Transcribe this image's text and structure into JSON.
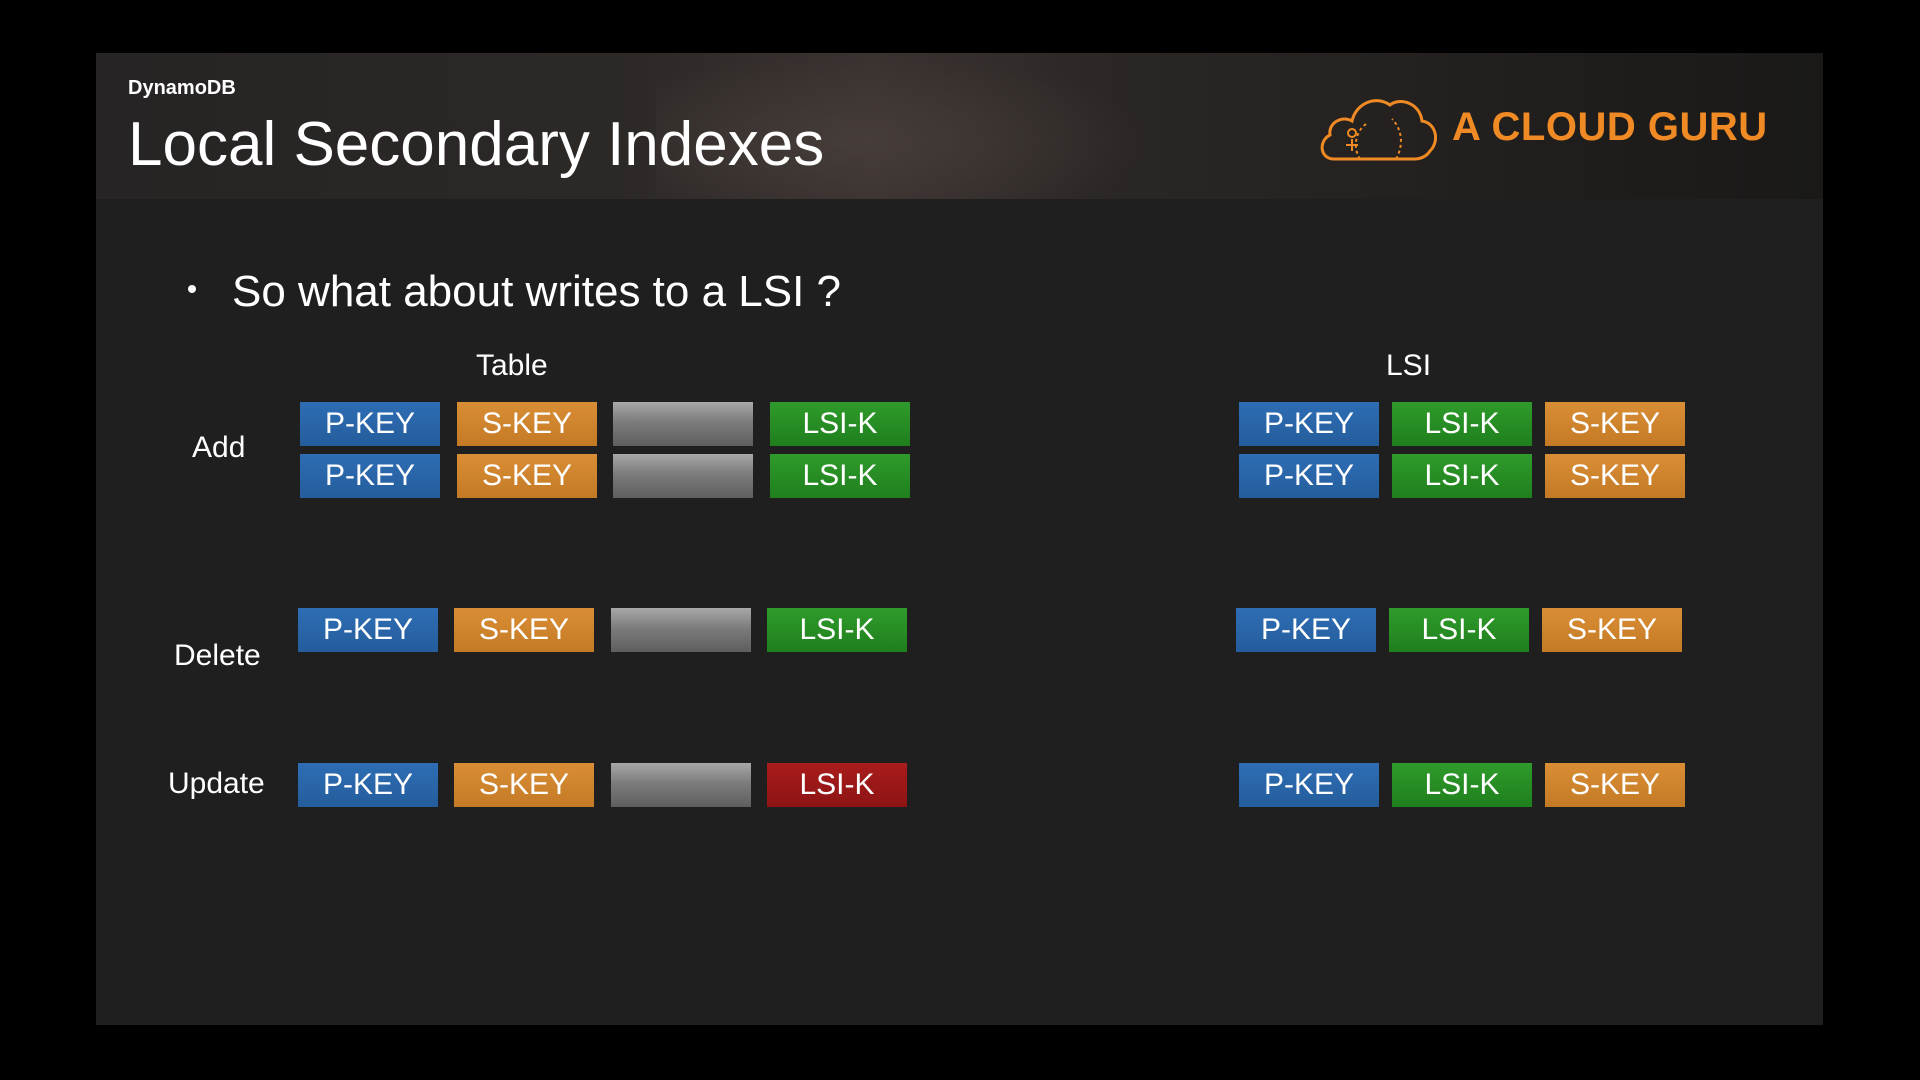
{
  "header": {
    "subtitle": "DynamoDB",
    "title": "Local Secondary Indexes",
    "logo_text": "A CLOUD GURU",
    "logo_icon": "cloud-icon"
  },
  "bullet": {
    "text": "So what about writes to a LSI ?"
  },
  "columns": {
    "table": "Table",
    "lsi": "LSI"
  },
  "rows": {
    "add": "Add",
    "delete": "Delete",
    "update": "Update"
  },
  "cells": {
    "pkey": "P-KEY",
    "skey": "S-KEY",
    "lsik": "LSI-K"
  },
  "colors": {
    "pkey": "#2a66aa",
    "skey": "#d08530",
    "lsik": "#278d24",
    "lsik_updated": "#9c1818",
    "blank": "#808080",
    "logo": "#f08a24"
  }
}
